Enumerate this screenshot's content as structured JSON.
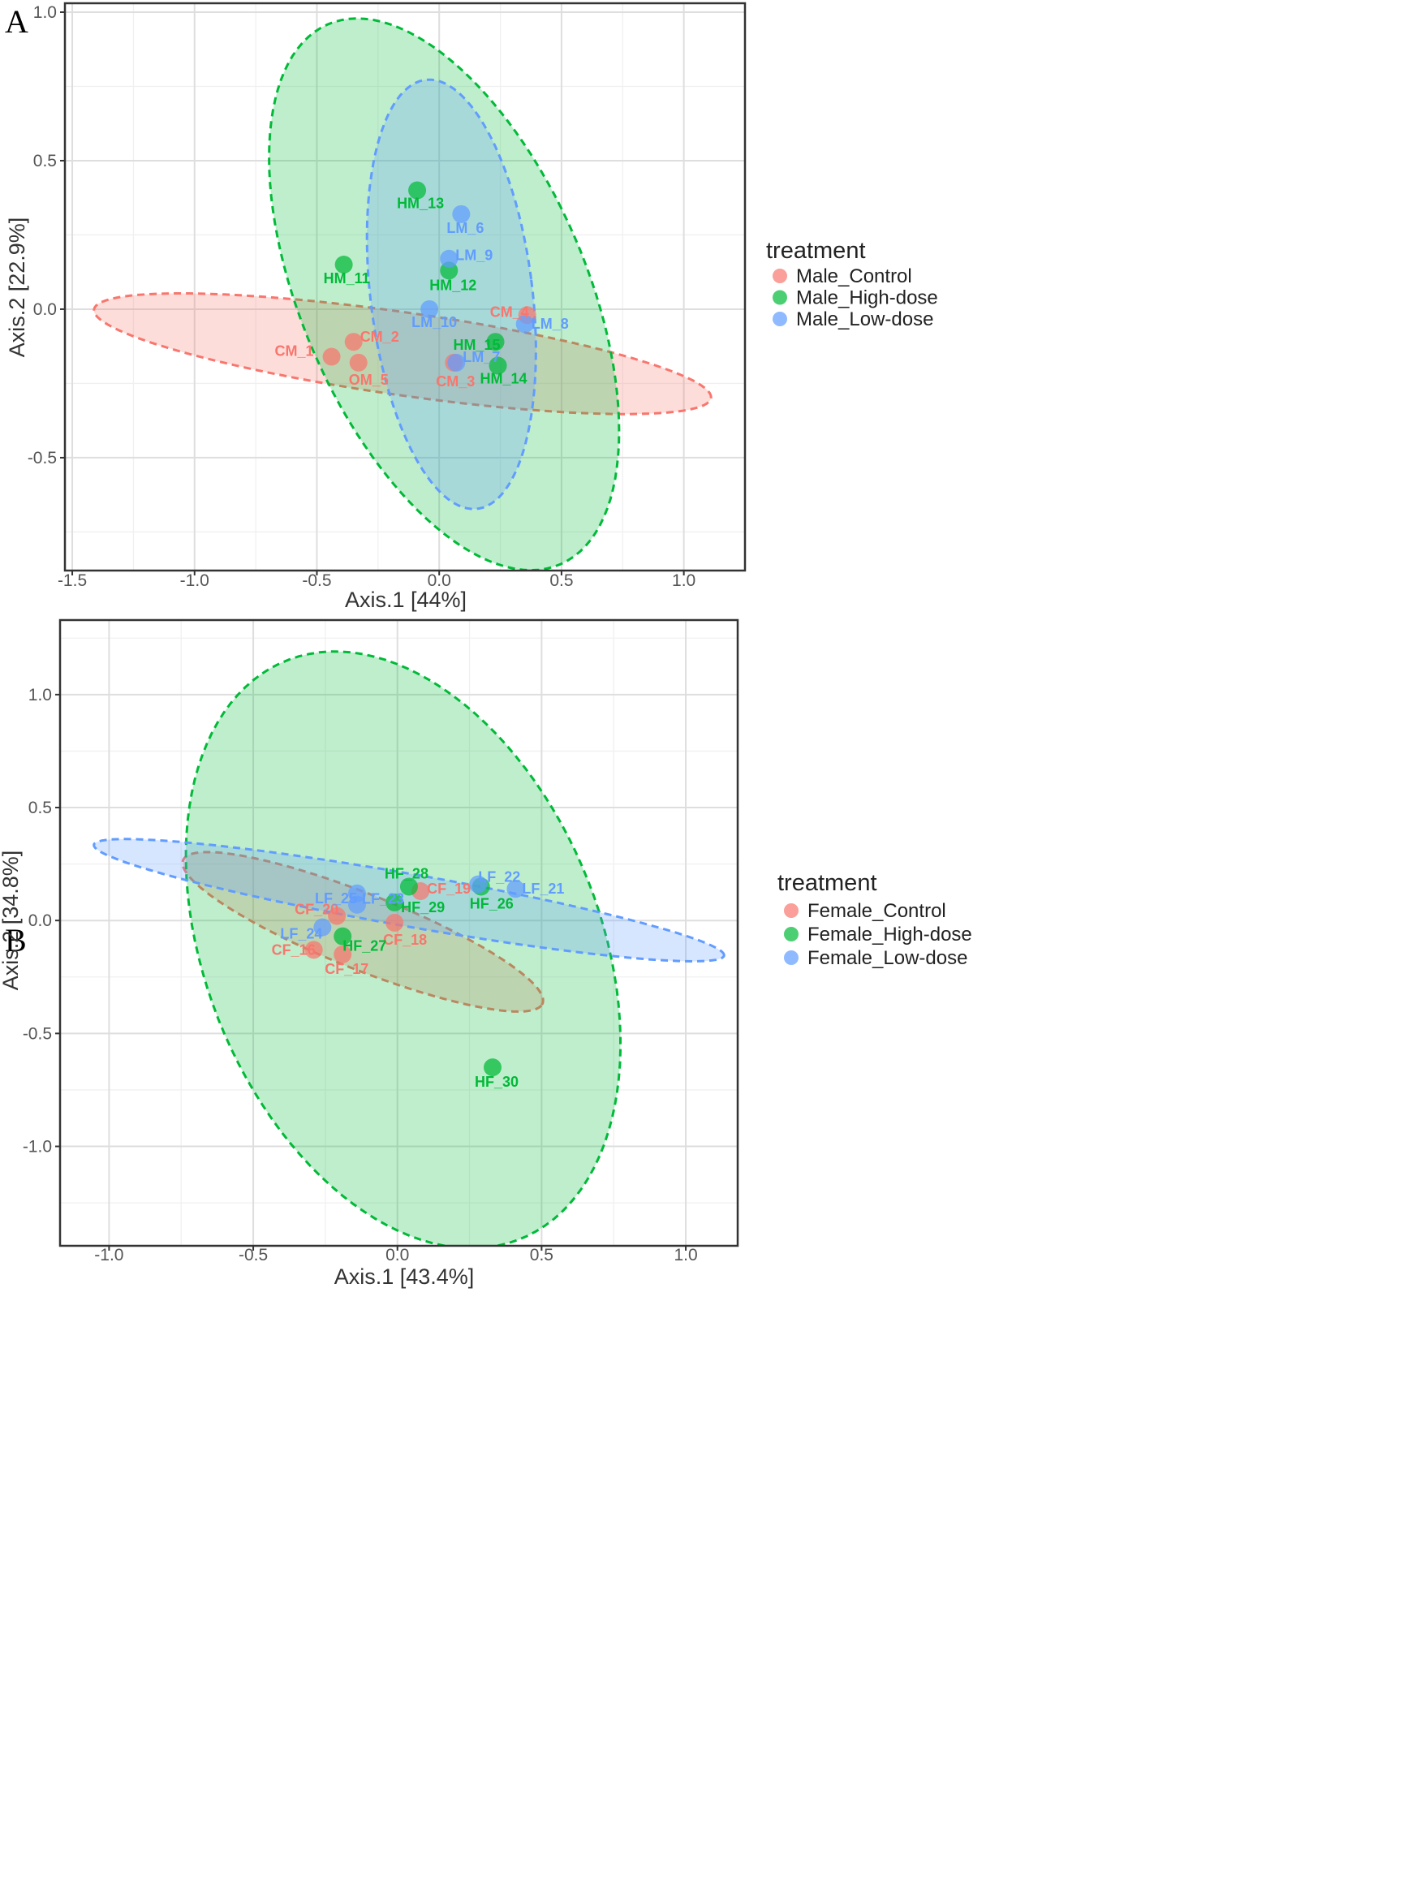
{
  "colors": {
    "control": "#F8766D",
    "high": "#00BA38",
    "low": "#619CFF"
  },
  "chart_data": [
    {
      "panel": "A",
      "type": "scatter",
      "title": "",
      "xlabel": "Axis.1   [44%]",
      "ylabel": "Axis.2   [22.9%]",
      "xlim": [
        -1.53,
        1.25
      ],
      "ylim": [
        -0.88,
        1.03
      ],
      "xticks": [
        -1.5,
        -1.0,
        -0.5,
        0.0,
        0.5,
        1.0
      ],
      "xtick_labels": [
        "-1.5",
        "-1.0",
        "-0.5",
        "0.0",
        "0.5",
        "1.0"
      ],
      "yticks": [
        -0.5,
        0.0,
        0.5,
        1.0
      ],
      "ytick_labels": [
        "-0.5",
        "0.0",
        "0.5",
        "1.0"
      ],
      "grid": true,
      "legend_title": "treatment",
      "legend_position": "right",
      "series": [
        {
          "name": "Male_Control",
          "color": "#F8766D",
          "points": [
            {
              "label": "CM_1",
              "x": -0.44,
              "y": -0.16
            },
            {
              "label": "CM_2",
              "x": -0.35,
              "y": -0.11
            },
            {
              "label": "OM_5",
              "x": -0.33,
              "y": -0.18
            },
            {
              "label": "CM_3",
              "x": 0.06,
              "y": -0.18
            },
            {
              "label": "CM_4",
              "x": 0.36,
              "y": -0.02
            }
          ],
          "ellipse": {
            "cx": -0.15,
            "cy": -0.15,
            "rx": 1.27,
            "ry": 0.14,
            "angle_deg": -6.7
          }
        },
        {
          "name": "Male_High-dose",
          "color": "#00BA38",
          "points": [
            {
              "label": "HM_13",
              "x": -0.09,
              "y": 0.4
            },
            {
              "label": "HM_11",
              "x": -0.39,
              "y": 0.15
            },
            {
              "label": "HM_12",
              "x": 0.04,
              "y": 0.13
            },
            {
              "label": "HM_15",
              "x": 0.23,
              "y": -0.11
            },
            {
              "label": "HM_14",
              "x": 0.24,
              "y": -0.19
            }
          ],
          "ellipse": {
            "cx": 0.02,
            "cy": 0.05,
            "rx": 0.56,
            "ry": 1.03,
            "angle_deg": 31
          }
        },
        {
          "name": "Male_Low-dose",
          "color": "#619CFF",
          "points": [
            {
              "label": "LM_6",
              "x": 0.09,
              "y": 0.32
            },
            {
              "label": "LM_9",
              "x": 0.04,
              "y": 0.17
            },
            {
              "label": "LM_10",
              "x": -0.04,
              "y": 0.0
            },
            {
              "label": "LM_7",
              "x": 0.07,
              "y": -0.18
            },
            {
              "label": "LM_8",
              "x": 0.35,
              "y": -0.05
            }
          ],
          "ellipse": {
            "cx": 0.05,
            "cy": 0.05,
            "rx": 0.33,
            "ry": 0.73,
            "angle_deg": 9
          }
        }
      ]
    },
    {
      "panel": "B",
      "type": "scatter",
      "title": "",
      "xlabel": "Axis.1   [43.4%]",
      "ylabel": "Axis.2   [34.8%]",
      "xlim": [
        -1.17,
        1.18
      ],
      "ylim": [
        -1.44,
        1.33
      ],
      "xticks": [
        -1.0,
        -0.5,
        0.0,
        0.5,
        1.0
      ],
      "xtick_labels": [
        "-1.0",
        "-0.5",
        "0.0",
        "0.5",
        "1.0"
      ],
      "yticks": [
        -1.0,
        -0.5,
        0.0,
        0.5,
        1.0
      ],
      "ytick_labels": [
        "-1.0",
        "-0.5",
        "0.0",
        "0.5",
        "1.0"
      ],
      "grid": true,
      "legend_title": "treatment",
      "legend_position": "right",
      "series": [
        {
          "name": "Female_Control",
          "color": "#F8766D",
          "points": [
            {
              "label": "CF_16",
              "x": -0.29,
              "y": -0.13
            },
            {
              "label": "CF_17",
              "x": -0.19,
              "y": -0.15
            },
            {
              "label": "CF_20",
              "x": -0.21,
              "y": 0.02
            },
            {
              "label": "CF_18",
              "x": -0.01,
              "y": -0.01
            },
            {
              "label": "CF_19",
              "x": 0.08,
              "y": 0.13
            }
          ],
          "ellipse": {
            "cx": -0.12,
            "cy": -0.05,
            "rx": 0.7,
            "ry": 0.16,
            "angle_deg": -27.5
          }
        },
        {
          "name": "Female_High-dose",
          "color": "#00BA38",
          "points": [
            {
              "label": "HF_28",
              "x": 0.04,
              "y": 0.15
            },
            {
              "label": "HF_29",
              "x": -0.01,
              "y": 0.08
            },
            {
              "label": "HF_27",
              "x": -0.19,
              "y": -0.07
            },
            {
              "label": "HF_26",
              "x": 0.29,
              "y": 0.15
            },
            {
              "label": "HF_30",
              "x": 0.33,
              "y": -0.65
            }
          ],
          "ellipse": {
            "cx": 0.02,
            "cy": -0.13,
            "rx": 0.7,
            "ry": 1.35,
            "angle_deg": 14
          }
        },
        {
          "name": "Female_Low-dose",
          "color": "#619CFF",
          "points": [
            {
              "label": "LF_25",
              "x": -0.14,
              "y": 0.12
            },
            {
              "label": "LF_23",
              "x": -0.14,
              "y": 0.07
            },
            {
              "label": "LF_24",
              "x": -0.26,
              "y": -0.03
            },
            {
              "label": "LF_22",
              "x": 0.28,
              "y": 0.16
            },
            {
              "label": "LF_21",
              "x": 0.41,
              "y": 0.14
            }
          ],
          "ellipse": {
            "cx": 0.04,
            "cy": 0.09,
            "rx": 1.12,
            "ry": 0.115,
            "angle_deg": -12.7
          }
        }
      ]
    }
  ]
}
